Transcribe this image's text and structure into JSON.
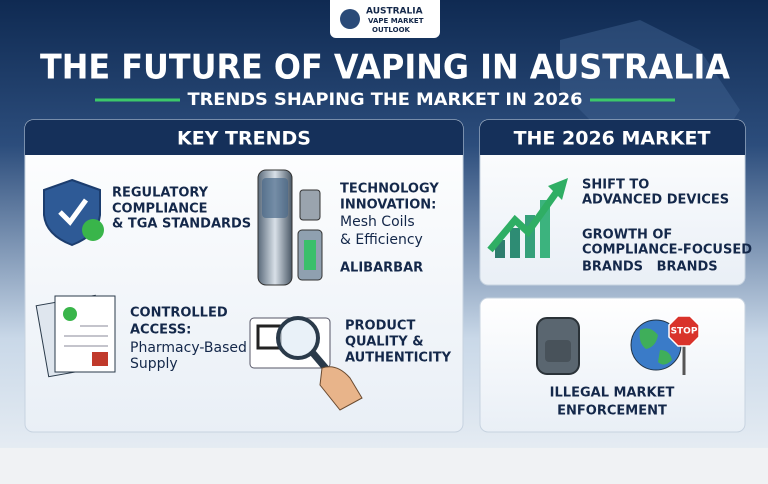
{
  "logo": {
    "lines": [
      "AUSTRALIA",
      "VAPE MARKET",
      "OUTLOOK"
    ]
  },
  "header": {
    "title": "THE FUTURE OF VAPING IN AUSTRALIA",
    "subtitle": "TRENDS SHAPING THE MARKET IN 2026"
  },
  "key_trends": {
    "heading": "KEY TRENDS",
    "items": [
      {
        "title_lines": [
          "REGULATORY",
          "COMPLIANCE",
          "& TGA STANDARDS"
        ]
      },
      {
        "title_lines": [
          "TECHNOLOGY",
          "INNOVATION:"
        ],
        "text_lines": [
          "Mesh Coils",
          "& Efficiency"
        ],
        "brand": "ALIBARBAR"
      },
      {
        "title_lines": [
          "CONTROLLED",
          "ACCESS:"
        ],
        "text_lines": [
          "Pharmacy-Based",
          "Supply"
        ]
      },
      {
        "title_lines": [
          "PRODUCT",
          "QUALITY &",
          "AUTHENTICITY"
        ]
      }
    ]
  },
  "market": {
    "heading": "THE 2026 MARKET",
    "items": [
      {
        "lines": [
          "SHIFT TO",
          "ADVANCED DEVICES"
        ]
      },
      {
        "lines": [
          "GROWTH OF",
          "COMPLIANCE-FOCUSED",
          "BRANDS   BRANDS"
        ]
      }
    ],
    "sign": "STOP",
    "enforcement_lines": [
      "ILLEGAL MARKET",
      "ENFORCEMENT"
    ]
  }
}
